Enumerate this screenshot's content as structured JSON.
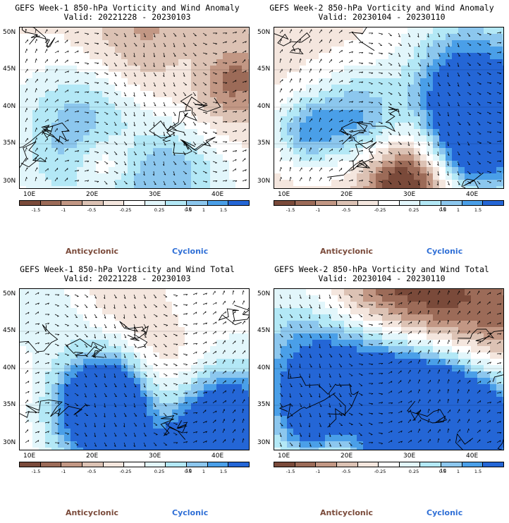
{
  "panels": [
    {
      "title_line1": "GEFS Week-1 850-hPa Vorticity and Wind Anomaly",
      "title_line2": "Valid: 20221228 - 20230103",
      "seed": 11
    },
    {
      "title_line1": "GEFS Week-2 850-hPa Vorticity and Wind Anomaly",
      "title_line2": "Valid: 20230104 - 20230110",
      "seed": 23
    },
    {
      "title_line1": "GEFS Week-1 850-hPa Vorticity and Wind Total",
      "title_line2": "Valid: 20221228 - 20230103",
      "seed": 37
    },
    {
      "title_line1": "GEFS Week-2 850-hPa Vorticity and Wind Total",
      "title_line2": "Valid: 20230104 - 20230110",
      "seed": 51
    }
  ],
  "lat_labels": [
    "50N",
    "45N",
    "40N",
    "35N",
    "30N"
  ],
  "lon_labels": [
    "10E",
    "20E",
    "30E",
    "40E"
  ],
  "colorbar": {
    "colors": [
      "#7a4a3a",
      "#9c6b58",
      "#c29784",
      "#dcc2b4",
      "#f4e6de",
      "#ffffff",
      "#e2f6fb",
      "#b3e8f6",
      "#8cc7ee",
      "#4a9fe8",
      "#2466d6"
    ],
    "ticks": [
      "-1.5",
      "-1",
      "-0.5",
      "-0.25",
      "0.25",
      "0.5",
      "1",
      "1.5"
    ],
    "unit": "10"
  },
  "legend": {
    "anticyclonic": "Anticyclonic",
    "cyclonic": "Cyclonic"
  }
}
